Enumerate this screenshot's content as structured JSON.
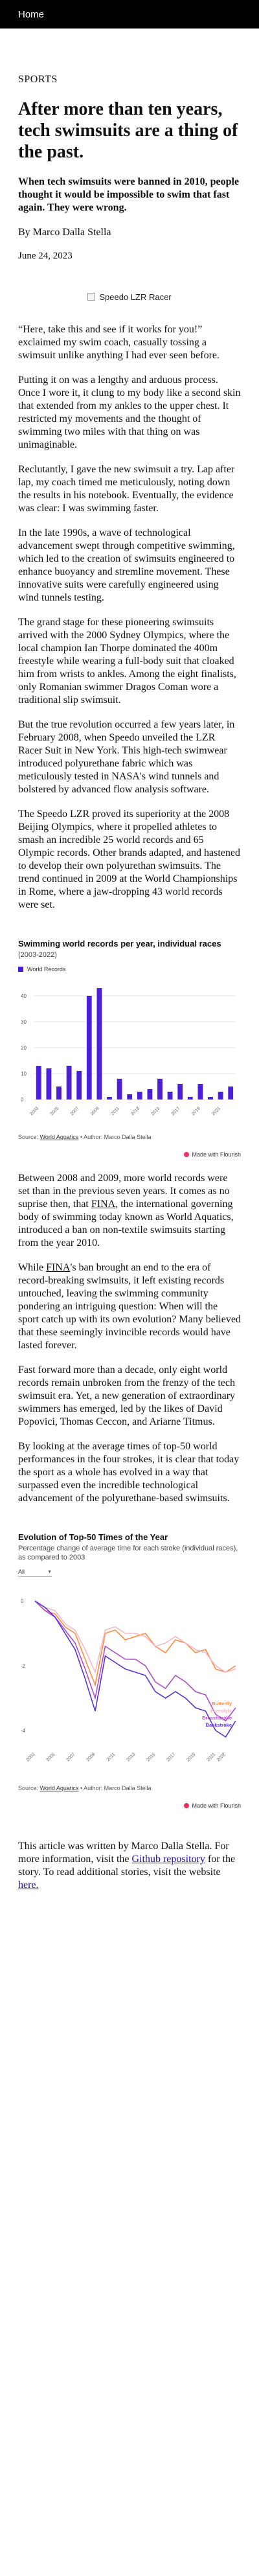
{
  "nav": {
    "home_label": "Home"
  },
  "article": {
    "section": "SPORTS",
    "headline": "After more than ten years, tech swimsuits are a thing of the past.",
    "dek": "When tech swimsuits were banned in 2010, people thought it would be impossible to swim that fast again. They were wrong.",
    "byline": "By Marco Dalla Stella",
    "date": "June 24, 2023",
    "hero_alt": "Speedo LZR Racer",
    "p1": "“Here, take this and see if it works for you!” exclaimed my swim coach, casually tossing a swimsuit unlike anything I had ever seen before.",
    "p2": "Putting it on was a lengthy and arduous process. Once I wore it, it clung to my body like a second skin that extended from my ankles to the upper chest. It restricted my movements and the thought of swimming two miles with that thing on was unimaginable.",
    "p3": "Reclutantly, I gave the new swimsuit a try. Lap after lap, my coach timed me meticulously, noting down the results in his notebook. Eventually, the evidence was clear: I was swimming faster.",
    "p4": "In the late 1990s, a wave of technological advancement swept through competitive swimming, which led to the creation of swimsuits engineered to enhance buoyancy and stremline movement. These innovative suits were carefully engineered using wind tunnels testing.",
    "p5": "The grand stage for these pioneering swimsuits arrived with the 2000 Sydney Olympics, where the local champion Ian Thorpe dominated the 400m freestyle while wearing a full-body suit that cloaked him from wrists to ankles. Among the eight finalists, only Romanian swimmer Dragos Coman wore a traditional slip swimsuit.",
    "p6": "But the true revolution occurred a few years later, in February 2008, when Speedo unveiled the LZR Racer Suit in New York. This high-tech swimwear introduced polyurethane fabric which was meticulously tested in NASA's wind tunnels and bolstered by advanced flow analysis software.",
    "p7": "The Speedo LZR proved its superiority at the 2008 Beijing Olympics, where it propelled athletes to smash an incredible 25 world records and 65 Olympic records. Other brands adapted, and hastened to develop their own polyurethan swimsuits. The trend continued in 2009 at the World Championships in Rome, where a jaw-dropping 43 world records were set.",
    "p8": "Between 2008 and 2009, more world records were set than in the previous seven years. It comes as no suprise then, that",
    "p8_abbr": "FINA",
    "p8_rest": ", the international governing body of swimming today known as World Aquatics, introduced a ban on non-textile swimsuits starting from the year 2010.",
    "p9_start": "While",
    "p9_abbr": "FINA",
    "p9_rest": "'s ban brought an end to the era of record-breaking swimsuits, it left existing records untouched, leaving the swimming community pondering an intriguing question: When will the sport catch up with its own evolution? Many believed that these seemingly invincible records would have lasted forever.",
    "p10": "Fast forward more than a decade, only eight world records remain unbroken from the frenzy of the tech swimsuit era. Yet, a new generation of extraordinary swimmers has emerged, led by the likes of David Popovici, Thomas Ceccon, and Ariarne Titmus.",
    "p11": "By looking at the average times of top-50 world performances in the four strokes, it is clear that today the sport as a whole has evolved in a way that surpassed even the incredible technological advancement of the polyurethane-based swimsuits.",
    "footer_pre": "This article was written by Marco Dalla Stella. For more information, visit the",
    "footer_link1": "Github repository",
    "footer_mid": "for the story. To read additional stories, visit the website",
    "footer_link2": "here."
  },
  "chart1": {
    "title": "Swimming world records per year, individual races",
    "subtitle": "(2003-2022)",
    "legend": "World Records",
    "source_label": "Source:",
    "source_link": "World Aquatics",
    "author_line": "• Author: Marco Dalla Stella",
    "made_with": "Made with Flourish"
  },
  "chart2": {
    "title": "Evolution of Top-50 Times of the Year",
    "subtitle": "Percentage change of average time for each stroke (individual races), as compared to 2003",
    "select_value": "All",
    "source_label": "Source:",
    "source_link": "World Aquatics",
    "author_line": "• Author: Marco Dalla Stella",
    "made_with": "Made with Flourish"
  },
  "colors": {
    "bar": "#4b1fd8",
    "butterfly": "#ff8a3d",
    "freestyle": "#f6b6c9",
    "breaststroke": "#b04cc9",
    "backstroke": "#5b2fd6"
  },
  "chart_data": [
    {
      "type": "bar",
      "title": "Swimming world records per year, individual races",
      "subtitle": "(2003-2022)",
      "categories": [
        "2003",
        "2004",
        "2005",
        "2006",
        "2007",
        "2008",
        "2009",
        "2010",
        "2011",
        "2012",
        "2013",
        "2014",
        "2015",
        "2016",
        "2017",
        "2018",
        "2019",
        "2020",
        "2021",
        "2022"
      ],
      "series": [
        {
          "name": "World Records",
          "values": [
            13,
            12,
            5,
            13,
            11,
            40,
            43,
            1,
            8,
            2,
            3,
            4,
            8,
            3,
            6,
            1,
            6,
            1,
            3,
            5
          ]
        }
      ],
      "ylim": [
        0,
        45
      ],
      "yticks": [
        0,
        10,
        20,
        30,
        40
      ],
      "xtick_labels": [
        "2003",
        "2005",
        "2007",
        "2009",
        "2011",
        "2013",
        "2015",
        "2017",
        "2019",
        "2021"
      ],
      "grid": true,
      "legend_position": "top-left"
    },
    {
      "type": "line",
      "title": "Evolution of Top-50 Times of the Year",
      "subtitle": "Percentage change of average time for each stroke (individual races), as compared to 2003",
      "x": [
        "2003",
        "2004",
        "2005",
        "2006",
        "2007",
        "2008",
        "2009",
        "2010",
        "2011",
        "2012",
        "2013",
        "2014",
        "2015",
        "2016",
        "2017",
        "2018",
        "2019",
        "2020",
        "2021",
        "2022",
        "2023"
      ],
      "xtick_labels": [
        "2003",
        "2005",
        "2007",
        "2009",
        "2011",
        "2013",
        "2015",
        "2017",
        "2019",
        "2021",
        "2022"
      ],
      "series": [
        {
          "name": "Butterfly",
          "values": [
            0,
            -0.3,
            -0.4,
            -0.8,
            -1.0,
            -1.8,
            -2.6,
            -1.0,
            -0.9,
            -1.2,
            -1.1,
            -1.0,
            -1.4,
            -1.6,
            -1.2,
            -1.3,
            -1.6,
            -1.5,
            -2.1,
            -2.2,
            -2.0
          ]
        },
        {
          "name": "Freestyle",
          "values": [
            0,
            -0.2,
            -0.3,
            -0.7,
            -0.9,
            -1.5,
            -2.2,
            -0.9,
            -0.8,
            -1.0,
            -1.0,
            -1.1,
            -1.4,
            -1.3,
            -1.1,
            -1.3,
            -1.5,
            -1.6,
            -2.0,
            -2.2,
            -2.1
          ]
        },
        {
          "name": "Breaststroke",
          "values": [
            0,
            -0.3,
            -0.5,
            -0.9,
            -1.3,
            -2.1,
            -3.0,
            -1.4,
            -1.6,
            -1.8,
            -1.8,
            -2.0,
            -2.5,
            -2.7,
            -2.3,
            -2.5,
            -2.8,
            -2.9,
            -3.5,
            -3.7,
            -3.3
          ]
        },
        {
          "name": "Backstroke",
          "values": [
            0,
            -0.2,
            -0.5,
            -1.0,
            -1.5,
            -2.4,
            -3.4,
            -1.7,
            -1.9,
            -2.1,
            -2.2,
            -2.3,
            -2.8,
            -3.0,
            -2.8,
            -3.0,
            -3.3,
            -3.4,
            -4.0,
            -4.2,
            -3.7
          ]
        }
      ],
      "yticks": [
        0,
        -2,
        -4
      ],
      "ylim": [
        -4.5,
        0.5
      ],
      "legend_position": "bottom-right",
      "grid": false
    }
  ]
}
